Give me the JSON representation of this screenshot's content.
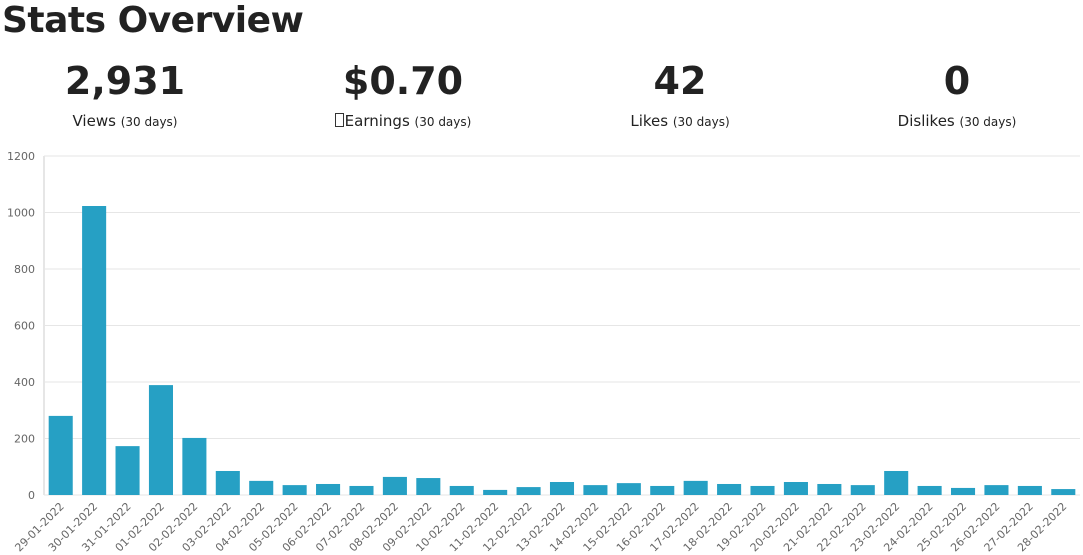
{
  "header": {
    "title": "Stats Overview"
  },
  "stats": [
    {
      "value": "2,931",
      "label": "Views",
      "period": "(30 days)"
    },
    {
      "value": "$0.70",
      "label": "Earnings",
      "period": "(30 days)"
    },
    {
      "value": "42",
      "label": "Likes",
      "period": "(30 days)"
    },
    {
      "value": "0",
      "label": "Dislikes",
      "period": "(30 days)"
    }
  ],
  "chart_data": {
    "type": "bar",
    "categories": [
      "29-01-2022",
      "30-01-2022",
      "31-01-2022",
      "01-02-2022",
      "02-02-2022",
      "03-02-2022",
      "04-02-2022",
      "05-02-2022",
      "06-02-2022",
      "07-02-2022",
      "08-02-2022",
      "09-02-2022",
      "10-02-2022",
      "11-02-2022",
      "12-02-2022",
      "13-02-2022",
      "14-02-2022",
      "15-02-2022",
      "16-02-2022",
      "17-02-2022",
      "18-02-2022",
      "19-02-2022",
      "20-02-2022",
      "21-02-2022",
      "22-02-2022",
      "23-02-2022",
      "24-02-2022",
      "25-02-2022",
      "26-02-2022",
      "27-02-2022",
      "28-02-2022"
    ],
    "values": [
      280,
      1023,
      173,
      389,
      202,
      85,
      50,
      35,
      39,
      32,
      64,
      60,
      32,
      18,
      28,
      46,
      35,
      42,
      32,
      50,
      39,
      32,
      46,
      39,
      35,
      85,
      32,
      25,
      35,
      32,
      21
    ],
    "color": "#26a0c4",
    "ylim": [
      0,
      1200
    ],
    "yticks": [
      0,
      200,
      400,
      600,
      800,
      1000,
      1200
    ],
    "grid": true
  }
}
